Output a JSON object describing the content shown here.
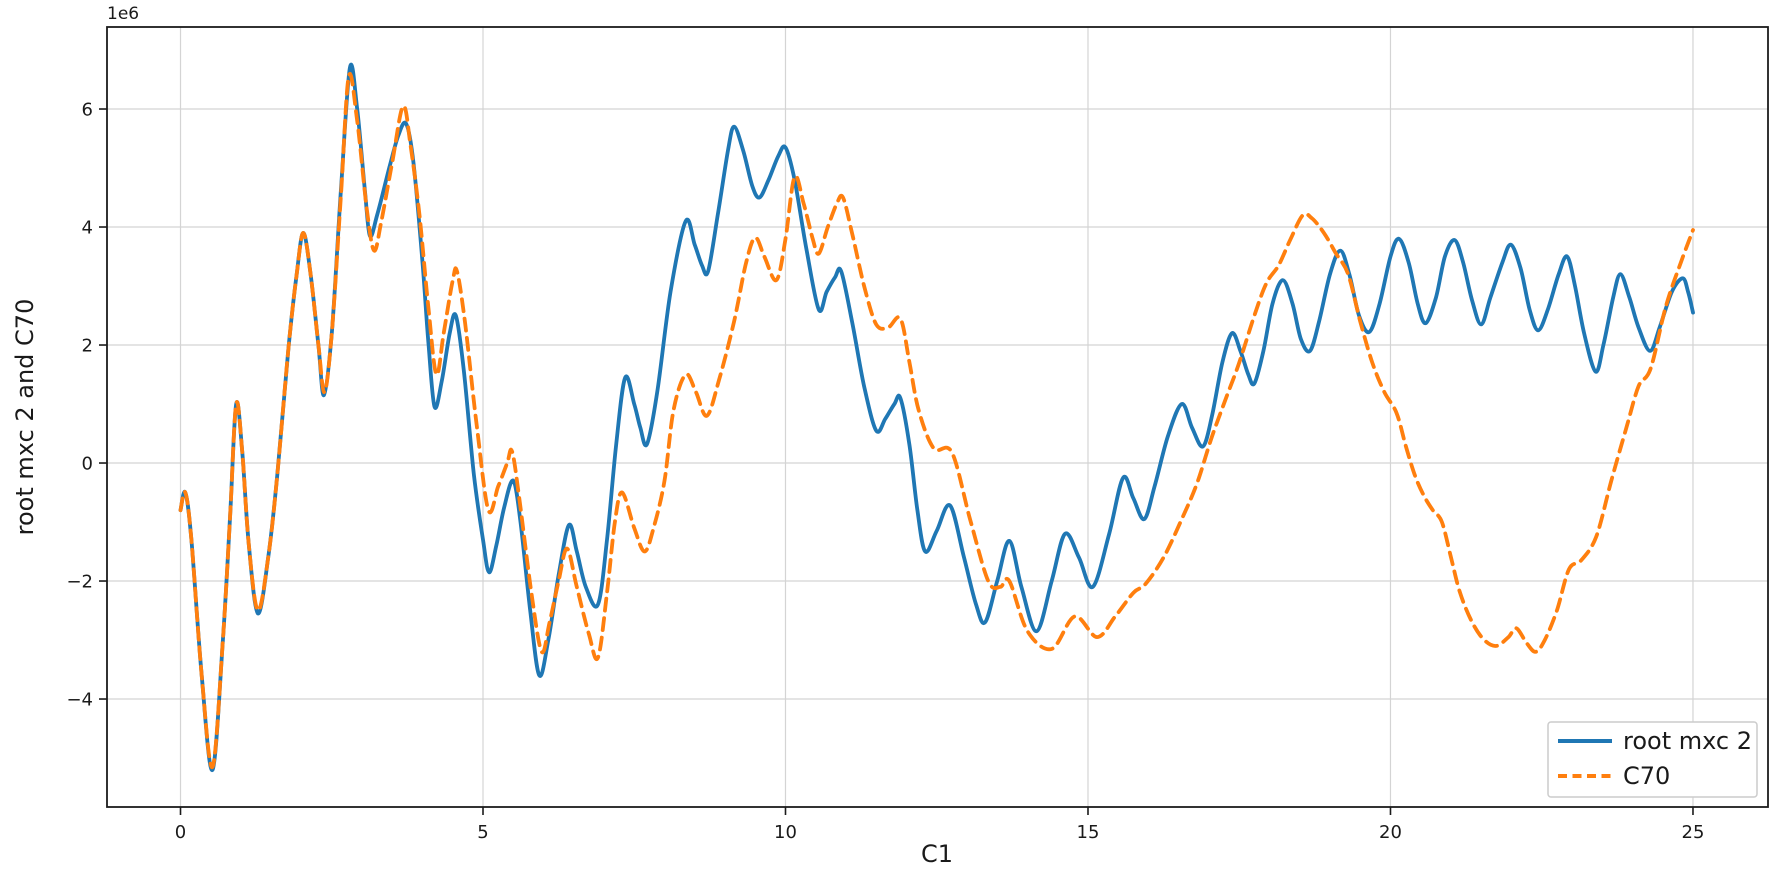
{
  "figure": {
    "kind": "matplotlib-line-plot",
    "background": "#ffffff",
    "grid_color": "#d4d4d4",
    "spine_color": "#1b1b1b",
    "text_color": "#1a1a1a"
  },
  "chart_data": {
    "type": "line",
    "title": "",
    "xlabel": "C1",
    "ylabel": "root mxc 2 and C70",
    "y_offset_text": "1e6",
    "y_multiplier": 1000000,
    "grid": true,
    "legend_position": "lower right",
    "xlim": [
      -1.215,
      26.24
    ],
    "ylim": [
      -5.83,
      7.39
    ],
    "x_ticks": [
      0,
      5,
      10,
      15,
      20,
      25
    ],
    "x_tick_labels": [
      "0",
      "5",
      "10",
      "15",
      "20",
      "25"
    ],
    "y_ticks": [
      -4,
      -2,
      0,
      2,
      4,
      6
    ],
    "y_tick_labels": [
      "−4",
      "−2",
      "0",
      "2",
      "4",
      "6"
    ],
    "series": [
      {
        "name": "root mxc 2",
        "color": "#1f77b4",
        "line_style": "solid",
        "line_width": 3.8,
        "points": [
          [
            0,
            -0.8
          ],
          [
            0.08,
            -0.5
          ],
          [
            0.18,
            -1.3
          ],
          [
            0.35,
            -3.6
          ],
          [
            0.53,
            -5.2
          ],
          [
            0.7,
            -3.0
          ],
          [
            0.82,
            -0.9
          ],
          [
            0.92,
            1.0
          ],
          [
            1.02,
            0.2
          ],
          [
            1.13,
            -1.4
          ],
          [
            1.28,
            -2.55
          ],
          [
            1.45,
            -1.6
          ],
          [
            1.6,
            -0.2
          ],
          [
            1.78,
            1.9
          ],
          [
            1.92,
            3.2
          ],
          [
            2.03,
            3.9
          ],
          [
            2.15,
            3.2
          ],
          [
            2.28,
            2.0
          ],
          [
            2.37,
            1.15
          ],
          [
            2.5,
            2.2
          ],
          [
            2.65,
            4.6
          ],
          [
            2.8,
            6.7
          ],
          [
            2.92,
            6.0
          ],
          [
            3.05,
            4.6
          ],
          [
            3.13,
            3.85
          ],
          [
            3.25,
            4.2
          ],
          [
            3.45,
            5.0
          ],
          [
            3.6,
            5.55
          ],
          [
            3.73,
            5.75
          ],
          [
            3.85,
            5.1
          ],
          [
            4.0,
            3.4
          ],
          [
            4.1,
            2.0
          ],
          [
            4.2,
            0.95
          ],
          [
            4.32,
            1.4
          ],
          [
            4.45,
            2.2
          ],
          [
            4.55,
            2.5
          ],
          [
            4.68,
            1.6
          ],
          [
            4.85,
            -0.2
          ],
          [
            5.0,
            -1.3
          ],
          [
            5.1,
            -1.85
          ],
          [
            5.22,
            -1.4
          ],
          [
            5.35,
            -0.75
          ],
          [
            5.5,
            -0.3
          ],
          [
            5.62,
            -1.0
          ],
          [
            5.78,
            -2.5
          ],
          [
            5.93,
            -3.6
          ],
          [
            6.08,
            -3.0
          ],
          [
            6.25,
            -1.9
          ],
          [
            6.42,
            -1.05
          ],
          [
            6.55,
            -1.5
          ],
          [
            6.7,
            -2.1
          ],
          [
            6.9,
            -2.4
          ],
          [
            7.05,
            -1.3
          ],
          [
            7.2,
            0.3
          ],
          [
            7.35,
            1.45
          ],
          [
            7.5,
            1.0
          ],
          [
            7.6,
            0.6
          ],
          [
            7.71,
            0.32
          ],
          [
            7.88,
            1.2
          ],
          [
            8.1,
            2.9
          ],
          [
            8.35,
            4.1
          ],
          [
            8.5,
            3.7
          ],
          [
            8.62,
            3.35
          ],
          [
            8.72,
            3.25
          ],
          [
            8.88,
            4.2
          ],
          [
            9.05,
            5.3
          ],
          [
            9.15,
            5.7
          ],
          [
            9.3,
            5.3
          ],
          [
            9.45,
            4.7
          ],
          [
            9.57,
            4.5
          ],
          [
            9.72,
            4.8
          ],
          [
            9.88,
            5.2
          ],
          [
            10.0,
            5.35
          ],
          [
            10.15,
            4.8
          ],
          [
            10.35,
            3.6
          ],
          [
            10.55,
            2.6
          ],
          [
            10.68,
            2.9
          ],
          [
            10.82,
            3.15
          ],
          [
            10.92,
            3.25
          ],
          [
            11.1,
            2.4
          ],
          [
            11.3,
            1.3
          ],
          [
            11.5,
            0.55
          ],
          [
            11.65,
            0.75
          ],
          [
            11.8,
            1.0
          ],
          [
            11.9,
            1.1
          ],
          [
            12.05,
            0.3
          ],
          [
            12.18,
            -0.8
          ],
          [
            12.31,
            -1.5
          ],
          [
            12.5,
            -1.15
          ],
          [
            12.72,
            -0.72
          ],
          [
            12.95,
            -1.6
          ],
          [
            13.15,
            -2.4
          ],
          [
            13.3,
            -2.7
          ],
          [
            13.5,
            -2.0
          ],
          [
            13.7,
            -1.32
          ],
          [
            13.9,
            -2.1
          ],
          [
            14.15,
            -2.85
          ],
          [
            14.4,
            -2.0
          ],
          [
            14.62,
            -1.2
          ],
          [
            14.85,
            -1.6
          ],
          [
            15.08,
            -2.1
          ],
          [
            15.35,
            -1.2
          ],
          [
            15.58,
            -0.25
          ],
          [
            15.75,
            -0.6
          ],
          [
            15.93,
            -0.95
          ],
          [
            16.1,
            -0.4
          ],
          [
            16.32,
            0.45
          ],
          [
            16.55,
            1.0
          ],
          [
            16.72,
            0.6
          ],
          [
            16.9,
            0.28
          ],
          [
            17.05,
            0.8
          ],
          [
            17.22,
            1.7
          ],
          [
            17.38,
            2.2
          ],
          [
            17.52,
            1.9
          ],
          [
            17.65,
            1.5
          ],
          [
            17.75,
            1.35
          ],
          [
            17.9,
            1.9
          ],
          [
            18.05,
            2.7
          ],
          [
            18.22,
            3.1
          ],
          [
            18.38,
            2.7
          ],
          [
            18.52,
            2.1
          ],
          [
            18.67,
            1.9
          ],
          [
            18.82,
            2.4
          ],
          [
            19.0,
            3.2
          ],
          [
            19.17,
            3.6
          ],
          [
            19.32,
            3.2
          ],
          [
            19.48,
            2.5
          ],
          [
            19.65,
            2.22
          ],
          [
            19.82,
            2.7
          ],
          [
            20.0,
            3.5
          ],
          [
            20.14,
            3.8
          ],
          [
            20.3,
            3.4
          ],
          [
            20.45,
            2.7
          ],
          [
            20.58,
            2.37
          ],
          [
            20.75,
            2.8
          ],
          [
            20.9,
            3.5
          ],
          [
            21.06,
            3.78
          ],
          [
            21.2,
            3.4
          ],
          [
            21.35,
            2.75
          ],
          [
            21.5,
            2.35
          ],
          [
            21.65,
            2.8
          ],
          [
            21.85,
            3.4
          ],
          [
            21.99,
            3.7
          ],
          [
            22.15,
            3.3
          ],
          [
            22.3,
            2.6
          ],
          [
            22.44,
            2.25
          ],
          [
            22.6,
            2.6
          ],
          [
            22.78,
            3.2
          ],
          [
            22.92,
            3.5
          ],
          [
            23.05,
            3.0
          ],
          [
            23.2,
            2.2
          ],
          [
            23.39,
            1.55
          ],
          [
            23.52,
            2.0
          ],
          [
            23.68,
            2.8
          ],
          [
            23.8,
            3.2
          ],
          [
            23.95,
            2.8
          ],
          [
            24.1,
            2.3
          ],
          [
            24.29,
            1.9
          ],
          [
            24.45,
            2.3
          ],
          [
            24.65,
            2.9
          ],
          [
            24.83,
            3.13
          ],
          [
            24.92,
            2.9
          ],
          [
            25.0,
            2.55
          ]
        ]
      },
      {
        "name": "C70",
        "color": "#ff7f0e",
        "line_style": "dashed",
        "line_width": 3.8,
        "points": [
          [
            0,
            -0.8
          ],
          [
            0.08,
            -0.5
          ],
          [
            0.18,
            -1.3
          ],
          [
            0.35,
            -3.6
          ],
          [
            0.53,
            -5.15
          ],
          [
            0.7,
            -3.0
          ],
          [
            0.82,
            -0.9
          ],
          [
            0.92,
            1.0
          ],
          [
            1.02,
            0.2
          ],
          [
            1.13,
            -1.4
          ],
          [
            1.28,
            -2.5
          ],
          [
            1.45,
            -1.6
          ],
          [
            1.6,
            -0.2
          ],
          [
            1.78,
            1.9
          ],
          [
            1.92,
            3.2
          ],
          [
            2.03,
            3.9
          ],
          [
            2.15,
            3.2
          ],
          [
            2.28,
            2.0
          ],
          [
            2.38,
            1.2
          ],
          [
            2.5,
            2.2
          ],
          [
            2.65,
            4.5
          ],
          [
            2.78,
            6.55
          ],
          [
            2.92,
            5.8
          ],
          [
            3.08,
            4.3
          ],
          [
            3.2,
            3.6
          ],
          [
            3.32,
            4.1
          ],
          [
            3.5,
            5.1
          ],
          [
            3.68,
            6.05
          ],
          [
            3.8,
            5.4
          ],
          [
            3.95,
            4.2
          ],
          [
            4.1,
            2.6
          ],
          [
            4.23,
            1.5
          ],
          [
            4.35,
            2.2
          ],
          [
            4.5,
            3.1
          ],
          [
            4.57,
            3.25
          ],
          [
            4.7,
            2.4
          ],
          [
            4.9,
            0.6
          ],
          [
            5.09,
            -0.8
          ],
          [
            5.25,
            -0.4
          ],
          [
            5.4,
            0.0
          ],
          [
            5.48,
            0.2
          ],
          [
            5.6,
            -0.6
          ],
          [
            5.8,
            -2.2
          ],
          [
            5.97,
            -3.2
          ],
          [
            6.1,
            -2.7
          ],
          [
            6.25,
            -2.0
          ],
          [
            6.39,
            -1.45
          ],
          [
            6.55,
            -2.1
          ],
          [
            6.75,
            -2.9
          ],
          [
            6.9,
            -3.3
          ],
          [
            7.05,
            -2.2
          ],
          [
            7.18,
            -1.0
          ],
          [
            7.3,
            -0.5
          ],
          [
            7.5,
            -1.1
          ],
          [
            7.67,
            -1.5
          ],
          [
            7.82,
            -1.1
          ],
          [
            8.0,
            -0.3
          ],
          [
            8.15,
            0.9
          ],
          [
            8.35,
            1.5
          ],
          [
            8.52,
            1.2
          ],
          [
            8.7,
            0.8
          ],
          [
            8.9,
            1.4
          ],
          [
            9.15,
            2.4
          ],
          [
            9.35,
            3.4
          ],
          [
            9.5,
            3.82
          ],
          [
            9.65,
            3.5
          ],
          [
            9.85,
            3.1
          ],
          [
            10.0,
            3.8
          ],
          [
            10.15,
            4.85
          ],
          [
            10.3,
            4.4
          ],
          [
            10.45,
            3.8
          ],
          [
            10.55,
            3.55
          ],
          [
            10.7,
            4.0
          ],
          [
            10.85,
            4.4
          ],
          [
            10.95,
            4.5
          ],
          [
            11.1,
            3.9
          ],
          [
            11.3,
            3.0
          ],
          [
            11.5,
            2.35
          ],
          [
            11.7,
            2.3
          ],
          [
            11.9,
            2.45
          ],
          [
            12.05,
            1.7
          ],
          [
            12.2,
            0.9
          ],
          [
            12.45,
            0.25
          ],
          [
            12.75,
            0.18
          ],
          [
            13.05,
            -0.95
          ],
          [
            13.35,
            -2.0
          ],
          [
            13.55,
            -2.1
          ],
          [
            13.7,
            -2.0
          ],
          [
            14.0,
            -2.85
          ],
          [
            14.4,
            -3.15
          ],
          [
            14.78,
            -2.6
          ],
          [
            15.15,
            -2.95
          ],
          [
            15.45,
            -2.6
          ],
          [
            15.75,
            -2.2
          ],
          [
            15.95,
            -2.05
          ],
          [
            16.25,
            -1.6
          ],
          [
            16.55,
            -0.95
          ],
          [
            16.8,
            -0.35
          ],
          [
            17.05,
            0.45
          ],
          [
            17.3,
            1.15
          ],
          [
            17.5,
            1.7
          ],
          [
            17.75,
            2.5
          ],
          [
            17.95,
            3.05
          ],
          [
            18.15,
            3.35
          ],
          [
            18.35,
            3.8
          ],
          [
            18.55,
            4.2
          ],
          [
            18.7,
            4.15
          ],
          [
            18.9,
            3.9
          ],
          [
            19.1,
            3.55
          ],
          [
            19.3,
            3.2
          ],
          [
            19.5,
            2.4
          ],
          [
            19.7,
            1.7
          ],
          [
            19.9,
            1.2
          ],
          [
            20.1,
            0.85
          ],
          [
            20.25,
            0.3
          ],
          [
            20.4,
            -0.2
          ],
          [
            20.55,
            -0.55
          ],
          [
            20.7,
            -0.8
          ],
          [
            20.85,
            -1.0
          ],
          [
            21.0,
            -1.6
          ],
          [
            21.15,
            -2.2
          ],
          [
            21.35,
            -2.7
          ],
          [
            21.55,
            -3.0
          ],
          [
            21.75,
            -3.1
          ],
          [
            21.95,
            -2.95
          ],
          [
            22.08,
            -2.8
          ],
          [
            22.25,
            -3.05
          ],
          [
            22.4,
            -3.2
          ],
          [
            22.55,
            -3.0
          ],
          [
            22.75,
            -2.5
          ],
          [
            22.95,
            -1.8
          ],
          [
            23.15,
            -1.65
          ],
          [
            23.4,
            -1.25
          ],
          [
            23.65,
            -0.3
          ],
          [
            23.9,
            0.6
          ],
          [
            24.1,
            1.3
          ],
          [
            24.3,
            1.6
          ],
          [
            24.55,
            2.65
          ],
          [
            24.8,
            3.4
          ],
          [
            25.0,
            3.95
          ]
        ]
      }
    ]
  }
}
